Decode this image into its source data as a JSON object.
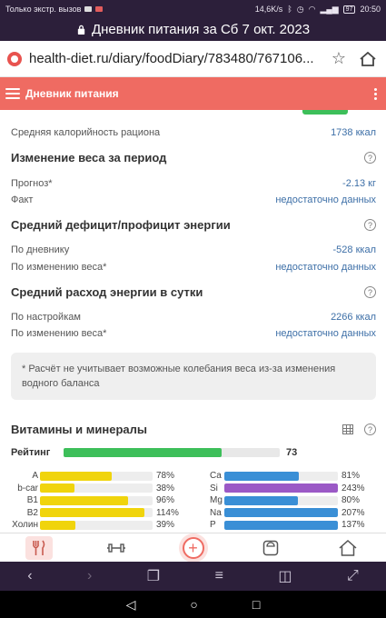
{
  "status_bar": {
    "left_text": "Только экстр. вызов",
    "right_text": "14,6K/s",
    "battery": "97",
    "time": "20:50"
  },
  "tab_title": "Дневник питания за Сб 7 окт. 2023",
  "address": {
    "url": "health-diet.ru/diary/foodDiary/783480/767106..."
  },
  "app_header": {
    "title": "Дневник питания"
  },
  "content": {
    "avg_calories": {
      "label": "Средняя калорийность рациона",
      "value": "1738 ккал"
    },
    "weight_change": {
      "title": "Изменение веса за период",
      "rows": [
        {
          "label": "Прогноз*",
          "value": "-2.13 кг"
        },
        {
          "label": "Факт",
          "value": "недостаточно данных"
        }
      ]
    },
    "deficit": {
      "title": "Средний дефицит/профицит энергии",
      "rows": [
        {
          "label": "По дневнику",
          "value": "-528 ккал"
        },
        {
          "label": "По изменению веса*",
          "value": "недостаточно данных"
        }
      ]
    },
    "expenditure": {
      "title": "Средний расход энергии в сутки",
      "rows": [
        {
          "label": "По настройкам",
          "value": "2266 ккал"
        },
        {
          "label": "По изменению веса*",
          "value": "недостаточно данных"
        }
      ]
    },
    "note": "* Расчёт не учитывает возможные колебания веса из-за изменения водного баланса",
    "vitamins": {
      "title": "Витамины и минералы",
      "rating_label": "Рейтинг",
      "rating_value": "73",
      "rating_fraction": 0.73,
      "left": [
        {
          "label": "A",
          "pct": "78%",
          "value": 78
        },
        {
          "label": "b-car",
          "pct": "38%",
          "value": 38
        },
        {
          "label": "B1",
          "pct": "96%",
          "value": 96
        },
        {
          "label": "B2",
          "pct": "114%",
          "value": 114
        },
        {
          "label": "Холин",
          "pct": "39%",
          "value": 39
        }
      ],
      "right": [
        {
          "label": "Ca",
          "pct": "81%",
          "value": 81,
          "color": "#3a8fd6"
        },
        {
          "label": "Si",
          "pct": "243%",
          "value": 243,
          "color": "#9b59c6"
        },
        {
          "label": "Mg",
          "pct": "80%",
          "value": 80,
          "color": "#3a8fd6"
        },
        {
          "label": "Na",
          "pct": "207%",
          "value": 207,
          "color": "#3a8fd6"
        },
        {
          "label": "P",
          "pct": "137%",
          "value": 137,
          "color": "#3a8fd6"
        }
      ],
      "vitamin_color": "#f0d40c"
    }
  },
  "colors": {
    "header": "#ef6b62",
    "system_bar": "#2c1f3a",
    "link_value": "#3d6fa7",
    "rating": "#3dbf5a"
  },
  "bottom_nav": [
    "food-diary-icon",
    "workout-icon",
    "add-icon",
    "scale-icon",
    "home-icon"
  ]
}
